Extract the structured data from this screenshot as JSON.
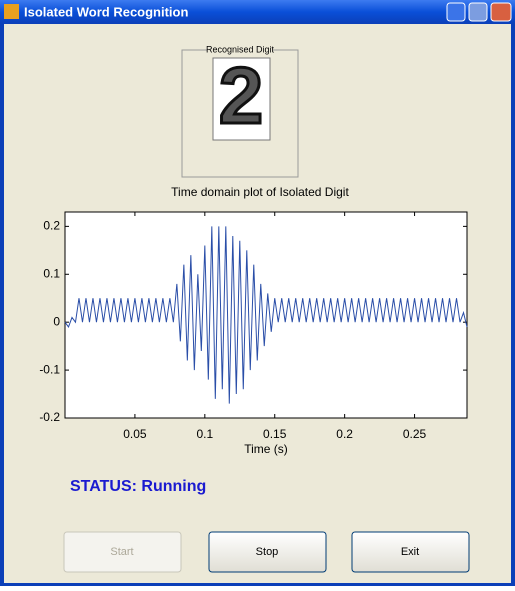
{
  "window": {
    "title": "Isolated Word Recognition"
  },
  "panel": {
    "title": "Recognised Digit",
    "digit": "2"
  },
  "chart_data": {
    "type": "line",
    "title": "Time domain plot of Isolated Digit",
    "xlabel": "Time (s)",
    "x": [
      0,
      0.0025,
      0.005,
      0.0075,
      0.01,
      0.0125,
      0.015,
      0.0175,
      0.02,
      0.0225,
      0.025,
      0.0275,
      0.03,
      0.0325,
      0.035,
      0.0375,
      0.04,
      0.0425,
      0.045,
      0.0475,
      0.05,
      0.0525,
      0.055,
      0.0575,
      0.06,
      0.0625,
      0.065,
      0.0675,
      0.07,
      0.0725,
      0.075,
      0.0775,
      0.08,
      0.0825,
      0.085,
      0.0875,
      0.09,
      0.0925,
      0.095,
      0.0975,
      0.1,
      0.1025,
      0.105,
      0.1075,
      0.11,
      0.1125,
      0.115,
      0.1175,
      0.12,
      0.1225,
      0.125,
      0.1275,
      0.13,
      0.1325,
      0.135,
      0.1375,
      0.14,
      0.1425,
      0.145,
      0.1475,
      0.15,
      0.1525,
      0.155,
      0.1575,
      0.16,
      0.1625,
      0.165,
      0.1675,
      0.17,
      0.1725,
      0.175,
      0.1775,
      0.18,
      0.1825,
      0.185,
      0.1875,
      0.19,
      0.1925,
      0.195,
      0.1975,
      0.2,
      0.2025,
      0.205,
      0.2075,
      0.21,
      0.2125,
      0.215,
      0.2175,
      0.22,
      0.2225,
      0.225,
      0.2275,
      0.23,
      0.2325,
      0.235,
      0.2375,
      0.24,
      0.2425,
      0.245,
      0.2475,
      0.25,
      0.2525,
      0.255,
      0.2575,
      0.26,
      0.2625,
      0.265,
      0.2675,
      0.27,
      0.2725,
      0.275,
      0.2775,
      0.28,
      0.2825,
      0.285,
      0.2875
    ],
    "series": [
      {
        "color": "#2a4ea8",
        "values": [
          0,
          -0.01,
          0.01,
          0,
          0.05,
          0,
          0.05,
          0,
          0.05,
          0,
          0.05,
          0,
          0.05,
          0,
          0.05,
          0,
          0.05,
          0,
          0.05,
          0,
          0.05,
          0,
          0.05,
          0,
          0.05,
          0,
          0.05,
          0,
          0.05,
          0,
          0.05,
          0,
          0.08,
          -0.04,
          0.12,
          -0.08,
          0.14,
          -0.1,
          0.1,
          -0.06,
          0.16,
          -0.12,
          0.2,
          -0.16,
          0.2,
          -0.14,
          0.2,
          -0.17,
          0.18,
          -0.15,
          0.17,
          -0.14,
          0.15,
          -0.1,
          0.12,
          -0.08,
          0.08,
          -0.05,
          0.06,
          -0.02,
          0.05,
          0,
          0.05,
          0,
          0.05,
          0,
          0.05,
          0,
          0.05,
          0,
          0.05,
          0,
          0.05,
          0,
          0.05,
          0,
          0.05,
          0,
          0.05,
          0,
          0.05,
          0,
          0.05,
          0,
          0.05,
          0,
          0.05,
          0,
          0.05,
          0,
          0.05,
          0,
          0.05,
          0,
          0.05,
          0,
          0.05,
          0,
          0.05,
          0,
          0.05,
          0,
          0.05,
          0,
          0.05,
          0,
          0.05,
          0,
          0.05,
          0,
          0.05,
          0,
          0.05,
          0,
          0.02,
          -0.01
        ]
      }
    ],
    "xlim": [
      0,
      0.2875
    ],
    "ylim": [
      -0.2,
      0.23
    ],
    "xticks": [
      0.05,
      0.1,
      0.15,
      0.2,
      0.25
    ],
    "yticks": [
      -0.2,
      -0.1,
      0,
      0.1,
      0.2
    ]
  },
  "status": "STATUS: Running",
  "buttons": [
    {
      "label": "Start",
      "enabled": false
    },
    {
      "label": "Stop",
      "enabled": true
    },
    {
      "label": "Exit",
      "enabled": true
    }
  ]
}
